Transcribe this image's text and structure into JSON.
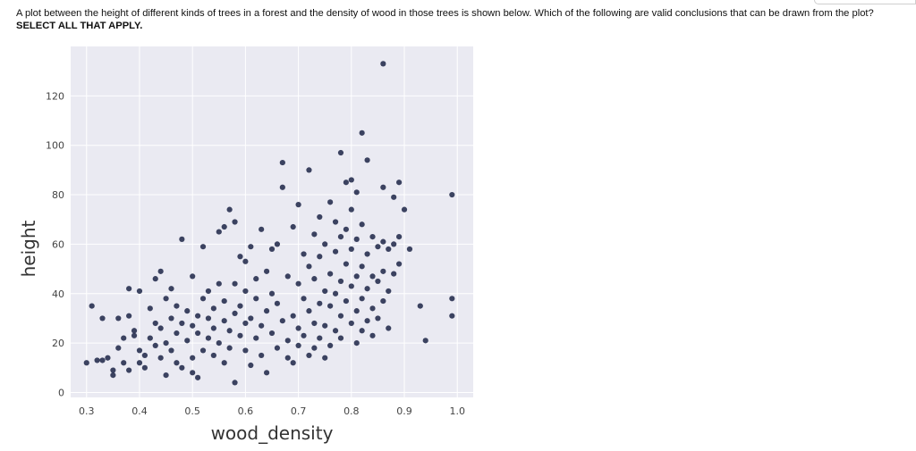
{
  "question": {
    "text": "A plot between the height of different kinds of trees in a forest and the density of wood in those trees is shown below. Which of the following are valid conclusions that can be drawn from the plot? ",
    "emphasis": "SELECT ALL THAT APPLY."
  },
  "chart_data": {
    "type": "scatter",
    "title": "",
    "xlabel": "wood_density",
    "ylabel": "height",
    "xlim": [
      0.27,
      1.03
    ],
    "ylim": [
      -2,
      140
    ],
    "xticks": [
      0.3,
      0.4,
      0.5,
      0.6,
      0.7,
      0.8,
      0.9,
      1.0
    ],
    "xtick_labels": [
      "0.3",
      "0.4",
      "0.5",
      "0.6",
      "0.7",
      "0.8",
      "0.9",
      "1.0"
    ],
    "yticks": [
      0,
      20,
      40,
      60,
      80,
      100,
      120
    ],
    "ytick_labels": [
      "0",
      "20",
      "40",
      "60",
      "80",
      "100",
      "120"
    ],
    "grid": true,
    "colors": {
      "background": "#eaeaf2",
      "grid": "#ffffff",
      "point": "#1c2446"
    },
    "points": [
      [
        0.3,
        12
      ],
      [
        0.31,
        35
      ],
      [
        0.32,
        13
      ],
      [
        0.33,
        13
      ],
      [
        0.33,
        30
      ],
      [
        0.34,
        14
      ],
      [
        0.35,
        9
      ],
      [
        0.35,
        7
      ],
      [
        0.36,
        18
      ],
      [
        0.36,
        30
      ],
      [
        0.37,
        12
      ],
      [
        0.37,
        22
      ],
      [
        0.38,
        9
      ],
      [
        0.38,
        31
      ],
      [
        0.38,
        42
      ],
      [
        0.39,
        23
      ],
      [
        0.39,
        25
      ],
      [
        0.4,
        17
      ],
      [
        0.4,
        12
      ],
      [
        0.4,
        41
      ],
      [
        0.41,
        15
      ],
      [
        0.41,
        10
      ],
      [
        0.42,
        34
      ],
      [
        0.42,
        22
      ],
      [
        0.43,
        46
      ],
      [
        0.43,
        28
      ],
      [
        0.43,
        19
      ],
      [
        0.44,
        49
      ],
      [
        0.44,
        14
      ],
      [
        0.44,
        26
      ],
      [
        0.45,
        38
      ],
      [
        0.45,
        20
      ],
      [
        0.45,
        7
      ],
      [
        0.46,
        30
      ],
      [
        0.46,
        17
      ],
      [
        0.46,
        42
      ],
      [
        0.47,
        24
      ],
      [
        0.47,
        35
      ],
      [
        0.47,
        12
      ],
      [
        0.48,
        62
      ],
      [
        0.48,
        28
      ],
      [
        0.48,
        10
      ],
      [
        0.49,
        33
      ],
      [
        0.49,
        21
      ],
      [
        0.5,
        47
      ],
      [
        0.5,
        27
      ],
      [
        0.5,
        8
      ],
      [
        0.5,
        14
      ],
      [
        0.51,
        31
      ],
      [
        0.51,
        24
      ],
      [
        0.51,
        6
      ],
      [
        0.52,
        59
      ],
      [
        0.52,
        38
      ],
      [
        0.52,
        17
      ],
      [
        0.53,
        30
      ],
      [
        0.53,
        22
      ],
      [
        0.53,
        41
      ],
      [
        0.54,
        26
      ],
      [
        0.54,
        15
      ],
      [
        0.54,
        34
      ],
      [
        0.55,
        65
      ],
      [
        0.55,
        44
      ],
      [
        0.55,
        20
      ],
      [
        0.56,
        67
      ],
      [
        0.56,
        29
      ],
      [
        0.56,
        12
      ],
      [
        0.56,
        37
      ],
      [
        0.57,
        74
      ],
      [
        0.57,
        25
      ],
      [
        0.57,
        18
      ],
      [
        0.58,
        69
      ],
      [
        0.58,
        32
      ],
      [
        0.58,
        44
      ],
      [
        0.58,
        4
      ],
      [
        0.59,
        55
      ],
      [
        0.59,
        23
      ],
      [
        0.59,
        35
      ],
      [
        0.6,
        53
      ],
      [
        0.6,
        28
      ],
      [
        0.6,
        41
      ],
      [
        0.6,
        17
      ],
      [
        0.61,
        59
      ],
      [
        0.61,
        30
      ],
      [
        0.61,
        11
      ],
      [
        0.62,
        38
      ],
      [
        0.62,
        22
      ],
      [
        0.62,
        46
      ],
      [
        0.63,
        66
      ],
      [
        0.63,
        27
      ],
      [
        0.63,
        15
      ],
      [
        0.64,
        49
      ],
      [
        0.64,
        33
      ],
      [
        0.64,
        8
      ],
      [
        0.65,
        58
      ],
      [
        0.65,
        24
      ],
      [
        0.65,
        40
      ],
      [
        0.66,
        60
      ],
      [
        0.66,
        18
      ],
      [
        0.66,
        36
      ],
      [
        0.67,
        93
      ],
      [
        0.67,
        83
      ],
      [
        0.67,
        29
      ],
      [
        0.68,
        47
      ],
      [
        0.68,
        21
      ],
      [
        0.68,
        14
      ],
      [
        0.69,
        67
      ],
      [
        0.69,
        31
      ],
      [
        0.69,
        12
      ],
      [
        0.7,
        76
      ],
      [
        0.7,
        44
      ],
      [
        0.7,
        26
      ],
      [
        0.7,
        19
      ],
      [
        0.71,
        56
      ],
      [
        0.71,
        38
      ],
      [
        0.71,
        23
      ],
      [
        0.72,
        90
      ],
      [
        0.72,
        51
      ],
      [
        0.72,
        33
      ],
      [
        0.72,
        15
      ],
      [
        0.73,
        64
      ],
      [
        0.73,
        46
      ],
      [
        0.73,
        28
      ],
      [
        0.73,
        18
      ],
      [
        0.74,
        71
      ],
      [
        0.74,
        55
      ],
      [
        0.74,
        36
      ],
      [
        0.74,
        22
      ],
      [
        0.75,
        60
      ],
      [
        0.75,
        41
      ],
      [
        0.75,
        27
      ],
      [
        0.75,
        14
      ],
      [
        0.76,
        77
      ],
      [
        0.76,
        48
      ],
      [
        0.76,
        35
      ],
      [
        0.76,
        19
      ],
      [
        0.77,
        69
      ],
      [
        0.77,
        57
      ],
      [
        0.77,
        40
      ],
      [
        0.77,
        25
      ],
      [
        0.78,
        97
      ],
      [
        0.78,
        63
      ],
      [
        0.78,
        45
      ],
      [
        0.78,
        31
      ],
      [
        0.78,
        22
      ],
      [
        0.79,
        85
      ],
      [
        0.79,
        66
      ],
      [
        0.79,
        52
      ],
      [
        0.79,
        37
      ],
      [
        0.8,
        86
      ],
      [
        0.8,
        74
      ],
      [
        0.8,
        58
      ],
      [
        0.8,
        43
      ],
      [
        0.8,
        28
      ],
      [
        0.81,
        81
      ],
      [
        0.81,
        62
      ],
      [
        0.81,
        47
      ],
      [
        0.81,
        33
      ],
      [
        0.81,
        20
      ],
      [
        0.82,
        105
      ],
      [
        0.82,
        68
      ],
      [
        0.82,
        51
      ],
      [
        0.82,
        38
      ],
      [
        0.82,
        25
      ],
      [
        0.83,
        94
      ],
      [
        0.83,
        56
      ],
      [
        0.83,
        42
      ],
      [
        0.83,
        29
      ],
      [
        0.84,
        63
      ],
      [
        0.84,
        47
      ],
      [
        0.84,
        34
      ],
      [
        0.84,
        23
      ],
      [
        0.85,
        59
      ],
      [
        0.85,
        45
      ],
      [
        0.85,
        30
      ],
      [
        0.86,
        133
      ],
      [
        0.86,
        83
      ],
      [
        0.86,
        61
      ],
      [
        0.86,
        49
      ],
      [
        0.86,
        37
      ],
      [
        0.87,
        58
      ],
      [
        0.87,
        41
      ],
      [
        0.87,
        26
      ],
      [
        0.88,
        79
      ],
      [
        0.88,
        60
      ],
      [
        0.88,
        48
      ],
      [
        0.89,
        85
      ],
      [
        0.89,
        63
      ],
      [
        0.89,
        52
      ],
      [
        0.9,
        74
      ],
      [
        0.91,
        58
      ],
      [
        0.93,
        35
      ],
      [
        0.94,
        21
      ],
      [
        0.99,
        80
      ],
      [
        0.99,
        38
      ],
      [
        0.99,
        31
      ]
    ]
  }
}
